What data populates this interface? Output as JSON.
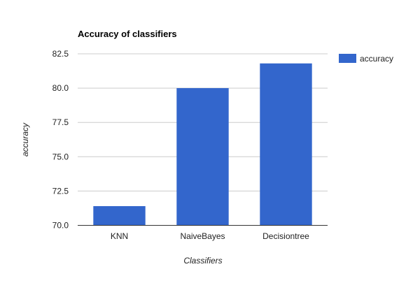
{
  "chart_data": {
    "type": "bar",
    "title": "Accuracy of classifiers",
    "xlabel": "Classifiers",
    "ylabel": "accuracy",
    "categories": [
      "KNN",
      "NaiveBayes",
      "Decisiontree"
    ],
    "series": [
      {
        "name": "accuracy",
        "values": [
          71.4,
          80.0,
          81.8
        ],
        "color": "#3366cc"
      }
    ],
    "ylim": [
      70.0,
      82.5
    ],
    "yticks": [
      "70.0",
      "72.5",
      "75.0",
      "77.5",
      "80.0",
      "82.5"
    ],
    "grid": true,
    "legend_position": "right"
  }
}
